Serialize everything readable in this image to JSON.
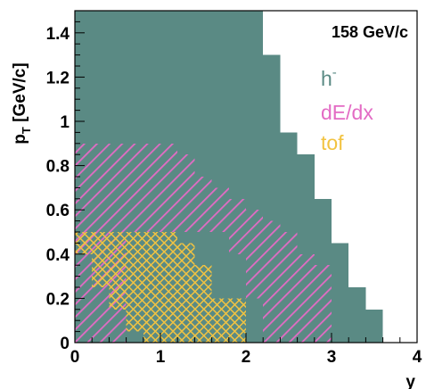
{
  "chart_data": {
    "type": "heatmap",
    "title": "",
    "energy_label": "158 GeV/c",
    "xlabel": "y",
    "ylabel_main": "p",
    "ylabel_sub": "T",
    "ylabel_unit": " [GeV/c]",
    "xlim": [
      0,
      4
    ],
    "ylim": [
      0,
      1.5
    ],
    "x_ticks": [
      {
        "value": 0,
        "label": "0"
      },
      {
        "value": 1,
        "label": "1"
      },
      {
        "value": 2,
        "label": "2"
      },
      {
        "value": 3,
        "label": "3"
      },
      {
        "value": 4,
        "label": "4"
      }
    ],
    "y_ticks": [
      {
        "value": 0,
        "label": "0"
      },
      {
        "value": 0.2,
        "label": "0.2"
      },
      {
        "value": 0.4,
        "label": "0.4"
      },
      {
        "value": 0.6,
        "label": "0.6"
      },
      {
        "value": 0.8,
        "label": "0.8"
      },
      {
        "value": 1.0,
        "label": "1"
      },
      {
        "value": 1.2,
        "label": "1.2"
      },
      {
        "value": 1.4,
        "label": "1.4"
      }
    ],
    "series": [
      {
        "name": "h",
        "superscript": "-",
        "color": "#5a8a84",
        "fill": "solid",
        "bins": [
          {
            "x0": 0.0,
            "x1": 2.2,
            "y0": 0.0,
            "y1": 1.5
          },
          {
            "x0": 2.2,
            "x1": 2.4,
            "y0": 0.0,
            "y1": 1.3
          },
          {
            "x0": 2.4,
            "x1": 2.6,
            "y0": 0.0,
            "y1": 0.95
          },
          {
            "x0": 2.6,
            "x1": 2.8,
            "y0": 0.0,
            "y1": 0.85
          },
          {
            "x0": 2.8,
            "x1": 3.0,
            "y0": 0.0,
            "y1": 0.65
          },
          {
            "x0": 3.0,
            "x1": 3.2,
            "y0": 0.0,
            "y1": 0.45
          },
          {
            "x0": 3.2,
            "x1": 3.4,
            "y0": 0.0,
            "y1": 0.25
          },
          {
            "x0": 3.4,
            "x1": 3.6,
            "y0": 0.0,
            "y1": 0.15
          }
        ]
      },
      {
        "name": "dE/dx",
        "color": "#e36bc4",
        "fill": "hatch-diagonal",
        "bins": [
          {
            "x0": 0.0,
            "x1": 0.6,
            "y0": 0.0,
            "y1": 0.9
          },
          {
            "x0": 0.6,
            "x1": 1.2,
            "y0": 0.5,
            "y1": 0.9
          },
          {
            "x0": 1.2,
            "x1": 1.4,
            "y0": 0.5,
            "y1": 0.85
          },
          {
            "x0": 1.4,
            "x1": 1.6,
            "y0": 0.5,
            "y1": 0.75
          },
          {
            "x0": 1.6,
            "x1": 1.8,
            "y0": 0.5,
            "y1": 0.7
          },
          {
            "x0": 1.8,
            "x1": 2.0,
            "y0": 0.4,
            "y1": 0.65
          },
          {
            "x0": 2.0,
            "x1": 2.2,
            "y0": 0.2,
            "y1": 0.6
          },
          {
            "x0": 2.2,
            "x1": 2.4,
            "y0": 0.0,
            "y1": 0.55
          },
          {
            "x0": 2.4,
            "x1": 2.6,
            "y0": 0.0,
            "y1": 0.5
          },
          {
            "x0": 2.6,
            "x1": 2.8,
            "y0": 0.0,
            "y1": 0.4
          },
          {
            "x0": 2.8,
            "x1": 3.0,
            "y0": 0.0,
            "y1": 0.35
          }
        ]
      },
      {
        "name": "tof",
        "color": "#f2c341",
        "fill": "hatch-cross",
        "bins": [
          {
            "x0": 0.0,
            "x1": 0.2,
            "y0": 0.4,
            "y1": 0.5
          },
          {
            "x0": 0.2,
            "x1": 0.4,
            "y0": 0.25,
            "y1": 0.5
          },
          {
            "x0": 0.4,
            "x1": 0.6,
            "y0": 0.15,
            "y1": 0.5
          },
          {
            "x0": 0.6,
            "x1": 0.8,
            "y0": 0.05,
            "y1": 0.5
          },
          {
            "x0": 0.8,
            "x1": 1.0,
            "y0": 0.0,
            "y1": 0.5
          },
          {
            "x0": 1.0,
            "x1": 1.2,
            "y0": 0.0,
            "y1": 0.5
          },
          {
            "x0": 1.2,
            "x1": 1.4,
            "y0": 0.0,
            "y1": 0.45
          },
          {
            "x0": 1.4,
            "x1": 1.6,
            "y0": 0.0,
            "y1": 0.35
          },
          {
            "x0": 1.6,
            "x1": 2.0,
            "y0": 0.0,
            "y1": 0.2
          }
        ]
      }
    ],
    "grid": false,
    "legend_placement": "top-right"
  }
}
